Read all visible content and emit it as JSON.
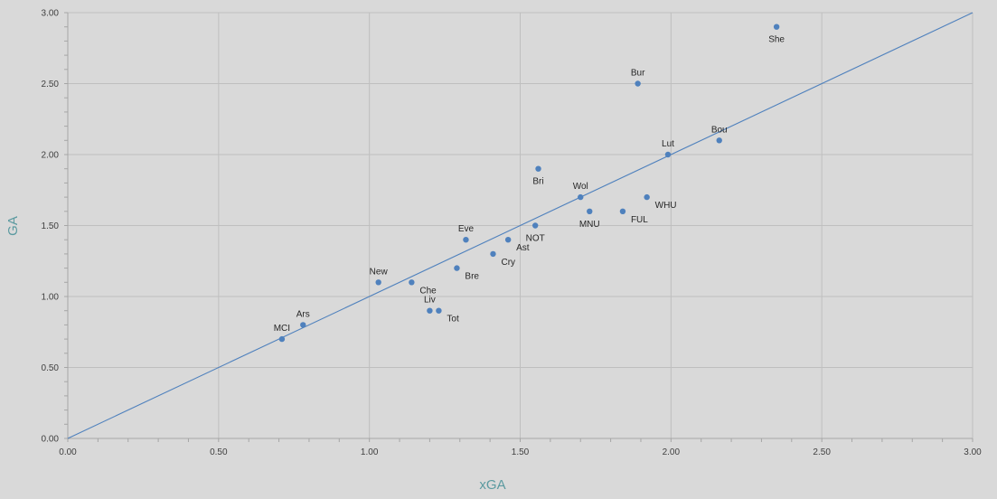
{
  "chart_data": {
    "type": "scatter",
    "title": "",
    "xlabel": "xGA",
    "ylabel": "GA",
    "xlim": [
      0,
      3
    ],
    "ylim": [
      0,
      3
    ],
    "x_ticks": [
      "0.00",
      "0.50",
      "1.00",
      "1.50",
      "2.00",
      "2.50",
      "3.00"
    ],
    "y_ticks": [
      "0.00",
      "0.50",
      "1.00",
      "1.50",
      "2.00",
      "2.50",
      "3.00"
    ],
    "grid": true,
    "legend": "none",
    "reference_line": {
      "x": [
        0,
        3
      ],
      "y": [
        0,
        3
      ]
    },
    "points": [
      {
        "label": "She",
        "x": 2.35,
        "y": 2.9,
        "label_pos": "below"
      },
      {
        "label": "Bur",
        "x": 1.89,
        "y": 2.5,
        "label_pos": "above"
      },
      {
        "label": "Bou",
        "x": 2.16,
        "y": 2.1,
        "label_pos": "above"
      },
      {
        "label": "Lut",
        "x": 1.99,
        "y": 2.0,
        "label_pos": "above"
      },
      {
        "label": "Bri",
        "x": 1.56,
        "y": 1.9,
        "label_pos": "below"
      },
      {
        "label": "Wol",
        "x": 1.7,
        "y": 1.7,
        "label_pos": "above"
      },
      {
        "label": "WHU",
        "x": 1.92,
        "y": 1.7,
        "label_pos": "right"
      },
      {
        "label": "MNU",
        "x": 1.73,
        "y": 1.6,
        "label_pos": "below"
      },
      {
        "label": "FUL",
        "x": 1.84,
        "y": 1.6,
        "label_pos": "right"
      },
      {
        "label": "NOT",
        "x": 1.55,
        "y": 1.5,
        "label_pos": "below"
      },
      {
        "label": "Eve",
        "x": 1.32,
        "y": 1.4,
        "label_pos": "above"
      },
      {
        "label": "Ast",
        "x": 1.46,
        "y": 1.4,
        "label_pos": "right"
      },
      {
        "label": "Cry",
        "x": 1.41,
        "y": 1.3,
        "label_pos": "right"
      },
      {
        "label": "Bre",
        "x": 1.29,
        "y": 1.2,
        "label_pos": "right"
      },
      {
        "label": "New",
        "x": 1.03,
        "y": 1.1,
        "label_pos": "above"
      },
      {
        "label": "Che",
        "x": 1.14,
        "y": 1.1,
        "label_pos": "right"
      },
      {
        "label": "Liv",
        "x": 1.2,
        "y": 0.9,
        "label_pos": "above"
      },
      {
        "label": "Tot",
        "x": 1.23,
        "y": 0.9,
        "label_pos": "right"
      },
      {
        "label": "Ars",
        "x": 0.78,
        "y": 0.8,
        "label_pos": "above"
      },
      {
        "label": "MCI",
        "x": 0.71,
        "y": 0.7,
        "label_pos": "above"
      }
    ],
    "colors": {
      "background": "#d9d9d9",
      "grid": "#bfbfbf",
      "axis": "#a6a6a6",
      "marker": "#4f81bd",
      "line": "#4f81bd",
      "axis_title": "#5b9aa0",
      "tick_text": "#404040"
    }
  }
}
